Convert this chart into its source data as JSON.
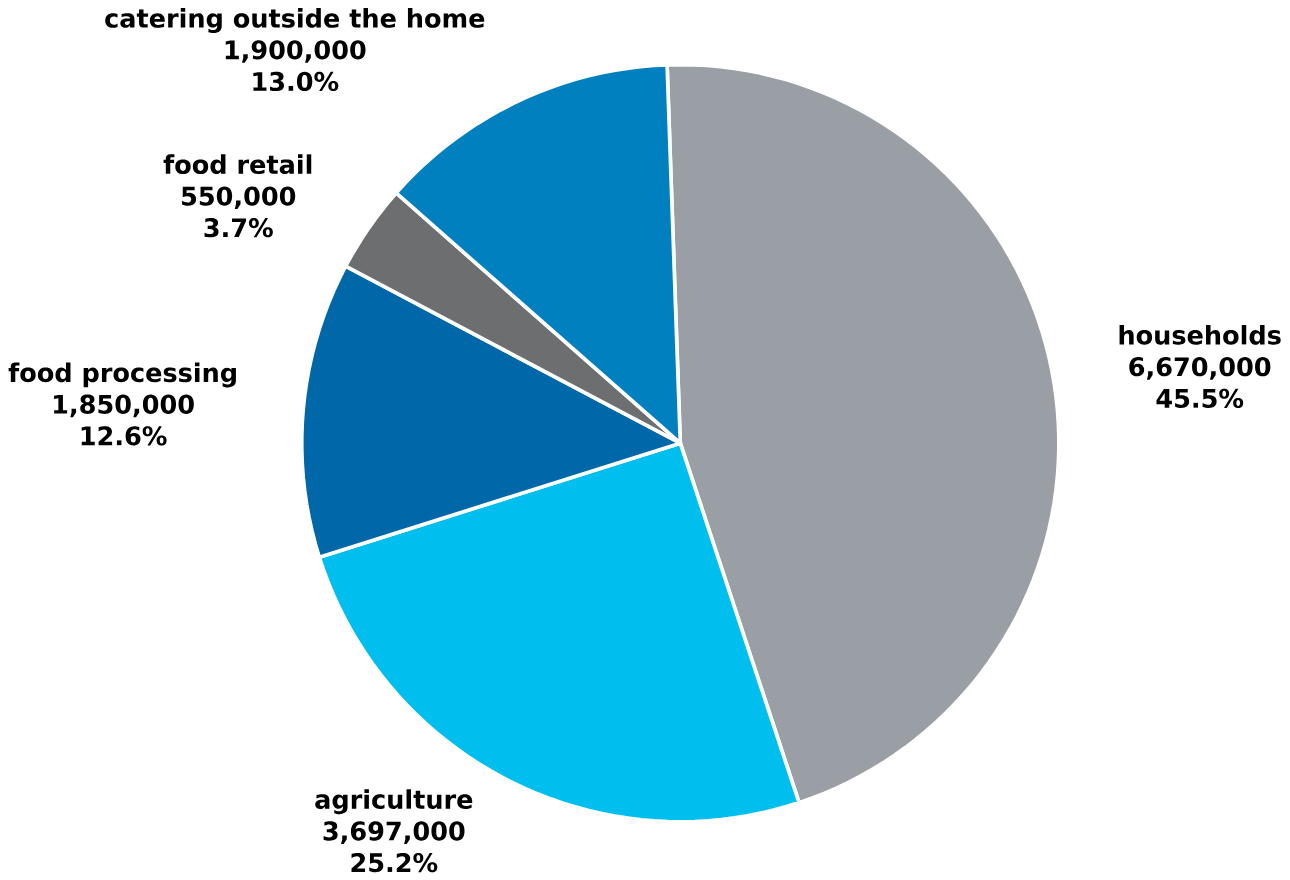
{
  "chart_data": {
    "type": "pie",
    "categories": [
      "households",
      "agriculture",
      "food processing",
      "food retail",
      "catering outside the home"
    ],
    "values": [
      6670000,
      3697000,
      1850000,
      550000,
      1900000
    ],
    "value_labels": [
      "6,670,000",
      "3,697,000",
      "1,850,000",
      "550,000",
      "1,900,000"
    ],
    "annotations": [
      "45.5%",
      "25.2%",
      "12.6%",
      "3.7%",
      "13.0%"
    ],
    "colors": [
      "#9a9fa5",
      "#00bfef",
      "#0068a8",
      "#6d6e70",
      "#0080bf"
    ]
  }
}
